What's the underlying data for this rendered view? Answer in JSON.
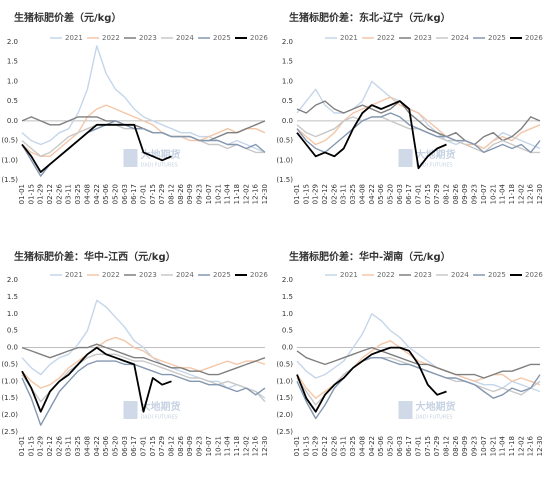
{
  "chart_data": [
    {
      "type": "line",
      "title": "生猪标肥价差（元/kg）",
      "watermark": "大地期货",
      "watermark_sub": "DADI FUTURES",
      "categories": [
        "01-01",
        "01-15",
        "01-29",
        "02-12",
        "02-26",
        "03-11",
        "03-25",
        "04-08",
        "04-22",
        "05-06",
        "05-20",
        "06-03",
        "06-17",
        "07-01",
        "07-15",
        "07-29",
        "08-12",
        "08-26",
        "09-09",
        "09-23",
        "10-07",
        "10-21",
        "11-04",
        "11-18",
        "12-02",
        "12-16",
        "12-30"
      ],
      "ylim": [
        -1.5,
        2
      ],
      "yticks": [
        {
          "value": 2,
          "label": "2.0"
        },
        {
          "value": 1.5,
          "label": "1.5"
        },
        {
          "value": 1,
          "label": "1.0"
        },
        {
          "value": 0.5,
          "label": "0.5"
        },
        {
          "value": 0,
          "label": "0.0"
        },
        {
          "value": -0.5,
          "label": "(0.5)"
        },
        {
          "value": -1,
          "label": "(1.0)"
        },
        {
          "value": -1.5,
          "label": "(1.5)"
        }
      ],
      "zero_line": true,
      "legend": "top",
      "series": [
        {
          "name": "2021",
          "color": "#c5d6ea",
          "values": [
            -0.3,
            -0.5,
            -0.6,
            -0.5,
            -0.3,
            -0.2,
            0.2,
            0.8,
            1.9,
            1.2,
            0.8,
            0.6,
            0.3,
            0.1,
            0,
            -0.1,
            -0.2,
            -0.3,
            -0.3,
            -0.4,
            -0.4,
            -0.5,
            -0.6,
            -0.5,
            -0.6,
            -0.7,
            -0.8
          ]
        },
        {
          "name": "2022",
          "color": "#f4c6a8",
          "values": [
            -0.6,
            -0.8,
            -0.9,
            -0.9,
            -0.7,
            -0.5,
            -0.3,
            0.1,
            0.3,
            0.4,
            0.3,
            0.2,
            0.1,
            0,
            -0.1,
            -0.3,
            -0.4,
            -0.4,
            -0.5,
            -0.5,
            -0.4,
            -0.3,
            -0.2,
            -0.3,
            -0.2,
            -0.2,
            -0.3
          ]
        },
        {
          "name": "2023",
          "color": "#7f7f7f",
          "values": [
            0,
            0.1,
            0,
            -0.1,
            -0.1,
            0,
            0.1,
            0.1,
            0.1,
            0,
            0,
            -0.1,
            -0.1,
            -0.2,
            -0.3,
            -0.3,
            -0.4,
            -0.4,
            -0.4,
            -0.5,
            -0.5,
            -0.4,
            -0.3,
            -0.3,
            -0.2,
            -0.1,
            0
          ]
        },
        {
          "name": "2024",
          "color": "#c8c8c8",
          "values": [
            -0.5,
            -0.7,
            -0.9,
            -0.8,
            -0.6,
            -0.4,
            -0.3,
            -0.2,
            -0.1,
            -0.1,
            -0.1,
            -0.2,
            -0.2,
            -0.2,
            -0.3,
            -0.3,
            -0.4,
            -0.4,
            -0.4,
            -0.5,
            -0.6,
            -0.6,
            -0.7,
            -0.6,
            -0.7,
            -0.8,
            -0.8
          ]
        },
        {
          "name": "2025",
          "color": "#8497b0",
          "values": [
            -0.6,
            -1,
            -1.4,
            -1.1,
            -0.9,
            -0.7,
            -0.5,
            -0.3,
            -0.2,
            -0.1,
            0,
            -0.1,
            -0.2,
            -0.2,
            -0.3,
            -0.3,
            -0.4,
            -0.4,
            -0.4,
            -0.5,
            -0.5,
            -0.5,
            -0.6,
            -0.6,
            -0.7,
            -0.6,
            -0.8
          ]
        },
        {
          "name": "2026",
          "color": "#000000",
          "values": [
            -0.6,
            -0.9,
            -1.3,
            -1.1,
            -0.9,
            -0.7,
            -0.5,
            -0.3,
            -0.1,
            -0.1,
            -0.1,
            -0.1,
            -0.1,
            -0.8,
            -0.9,
            -1,
            -0.9,
            null,
            null,
            null,
            null,
            null,
            null,
            null,
            null,
            null,
            null
          ]
        }
      ]
    },
    {
      "type": "line",
      "title": "生猪标肥价差：东北-辽宁（元/kg）",
      "watermark": "大地期货",
      "watermark_sub": "DADI FUTURES",
      "categories": [
        "01-01",
        "01-15",
        "01-29",
        "02-12",
        "02-26",
        "03-11",
        "03-25",
        "04-08",
        "04-22",
        "05-06",
        "05-20",
        "06-03",
        "06-17",
        "07-01",
        "07-15",
        "07-29",
        "08-12",
        "08-26",
        "09-09",
        "09-23",
        "10-07",
        "10-21",
        "11-04",
        "11-18",
        "12-02",
        "12-16",
        "12-30"
      ],
      "ylim": [
        -1.5,
        2
      ],
      "yticks": [
        {
          "value": 2,
          "label": "2.0"
        },
        {
          "value": 1.5,
          "label": "1.5"
        },
        {
          "value": 1,
          "label": "1.0"
        },
        {
          "value": 0.5,
          "label": "0.5"
        },
        {
          "value": 0,
          "label": "0.0"
        },
        {
          "value": -0.5,
          "label": "(0.5)"
        },
        {
          "value": -1,
          "label": "(1.0)"
        },
        {
          "value": -1.5,
          "label": "(1.5)"
        }
      ],
      "zero_line": true,
      "legend": "top",
      "series": [
        {
          "name": "2021",
          "color": "#c5d6ea",
          "values": [
            0.2,
            0.5,
            0.8,
            0.4,
            0.2,
            0.2,
            0.3,
            0.5,
            1,
            0.8,
            0.6,
            0.5,
            0.3,
            0.2,
            -0.1,
            -0.3,
            -0.5,
            -0.6,
            -0.5,
            -0.6,
            -0.7,
            -0.5,
            -0.3,
            -0.4,
            -0.5,
            -0.6,
            -0.7
          ]
        },
        {
          "name": "2022",
          "color": "#f4c6a8",
          "values": [
            -0.2,
            -0.4,
            -0.6,
            -0.5,
            -0.3,
            0,
            0.2,
            0.3,
            0.4,
            0.5,
            0.6,
            0.4,
            0.3,
            0.2,
            0,
            -0.2,
            -0.4,
            -0.5,
            -0.6,
            -0.6,
            -0.7,
            -0.5,
            -0.4,
            -0.5,
            -0.3,
            -0.2,
            -0.1
          ]
        },
        {
          "name": "2023",
          "color": "#7f7f7f",
          "values": [
            0.3,
            0.2,
            0.4,
            0.5,
            0.3,
            0.2,
            0.3,
            0.4,
            0.3,
            0.2,
            0.3,
            0.5,
            0.2,
            0,
            -0.2,
            -0.3,
            -0.4,
            -0.3,
            -0.5,
            -0.6,
            -0.4,
            -0.3,
            -0.5,
            -0.4,
            -0.2,
            0.1,
            0
          ]
        },
        {
          "name": "2024",
          "color": "#c8c8c8",
          "values": [
            -0.1,
            -0.3,
            -0.4,
            -0.3,
            -0.2,
            0,
            0.1,
            0,
            0.1,
            0.1,
            0,
            -0.1,
            -0.2,
            -0.2,
            -0.3,
            -0.4,
            -0.5,
            -0.5,
            -0.6,
            -0.7,
            -0.8,
            -0.6,
            -0.5,
            -0.6,
            -0.7,
            -0.8,
            -0.8
          ]
        },
        {
          "name": "2025",
          "color": "#8497b0",
          "values": [
            -0.2,
            -0.5,
            -0.7,
            -0.8,
            -0.6,
            -0.4,
            -0.2,
            0,
            0.1,
            0.1,
            0.2,
            0.1,
            -0.1,
            -0.2,
            -0.3,
            -0.4,
            -0.4,
            -0.5,
            -0.5,
            -0.6,
            -0.8,
            -0.7,
            -0.6,
            -0.7,
            -0.6,
            -0.8,
            -0.5
          ]
        },
        {
          "name": "2026",
          "color": "#000000",
          "values": [
            -0.3,
            -0.6,
            -0.9,
            -0.8,
            -0.9,
            -0.7,
            -0.2,
            0.2,
            0.4,
            0.3,
            0.4,
            0.5,
            0.3,
            -1.2,
            -0.9,
            -0.7,
            -0.6,
            null,
            null,
            null,
            null,
            null,
            null,
            null,
            null,
            null,
            null
          ]
        }
      ]
    },
    {
      "type": "line",
      "title": "生猪标肥价差：华中-江西（元/kg）",
      "watermark": "大地期货",
      "watermark_sub": "DADI FUTURES",
      "categories": [
        "01-01",
        "01-15",
        "01-29",
        "02-12",
        "02-26",
        "03-11",
        "03-25",
        "04-08",
        "04-22",
        "05-06",
        "05-20",
        "06-03",
        "06-17",
        "07-01",
        "07-15",
        "07-29",
        "08-12",
        "08-26",
        "09-09",
        "09-23",
        "10-07",
        "10-21",
        "11-04",
        "11-18",
        "12-02",
        "12-16",
        "12-30"
      ],
      "ylim": [
        -2.5,
        2
      ],
      "yticks": [
        {
          "value": 2,
          "label": "2.0"
        },
        {
          "value": 1.5,
          "label": "1.5"
        },
        {
          "value": 1,
          "label": "1.0"
        },
        {
          "value": 0.5,
          "label": "0.5"
        },
        {
          "value": 0,
          "label": "0.0"
        },
        {
          "value": -0.5,
          "label": "(0.5)"
        },
        {
          "value": -1,
          "label": "(1.0)"
        },
        {
          "value": -1.5,
          "label": "(1.5)"
        },
        {
          "value": -2,
          "label": "(2.0)"
        },
        {
          "value": -2.5,
          "label": "(2.5)"
        }
      ],
      "zero_line": true,
      "legend": "top",
      "series": [
        {
          "name": "2021",
          "color": "#c5d6ea",
          "values": [
            -0.3,
            -0.6,
            -0.8,
            -0.5,
            -0.3,
            -0.2,
            0.1,
            0.5,
            1.4,
            1.2,
            0.9,
            0.6,
            0.2,
            0,
            -0.3,
            -0.5,
            -0.6,
            -0.7,
            -0.8,
            -0.9,
            -1,
            -1,
            -1.2,
            -1.1,
            -1.2,
            -1.3,
            -1.5
          ]
        },
        {
          "name": "2022",
          "color": "#f4c6a8",
          "values": [
            -0.7,
            -1,
            -1.2,
            -1.1,
            -0.9,
            -0.6,
            -0.4,
            -0.2,
            0,
            0.2,
            0.3,
            0.2,
            0,
            -0.1,
            -0.3,
            -0.4,
            -0.5,
            -0.6,
            -0.6,
            -0.7,
            -0.6,
            -0.5,
            -0.4,
            -0.5,
            -0.4,
            -0.4,
            -0.5
          ]
        },
        {
          "name": "2023",
          "color": "#7f7f7f",
          "values": [
            0,
            -0.1,
            -0.2,
            -0.3,
            -0.2,
            -0.1,
            0,
            0,
            0.1,
            0,
            -0.1,
            -0.2,
            -0.3,
            -0.3,
            -0.4,
            -0.5,
            -0.6,
            -0.6,
            -0.7,
            -0.7,
            -0.8,
            -0.8,
            -0.7,
            -0.6,
            -0.5,
            -0.4,
            -0.3
          ]
        },
        {
          "name": "2024",
          "color": "#c8c8c8",
          "values": [
            -0.8,
            -1.2,
            -1.6,
            -1.3,
            -1,
            -0.7,
            -0.5,
            -0.3,
            -0.2,
            -0.2,
            -0.2,
            -0.3,
            -0.4,
            -0.4,
            -0.5,
            -0.6,
            -0.7,
            -0.8,
            -0.9,
            -0.9,
            -1,
            -1.1,
            -1,
            -1.1,
            -1.2,
            -1.3,
            -1.6
          ]
        },
        {
          "name": "2025",
          "color": "#8497b0",
          "values": [
            -0.9,
            -1.5,
            -2.3,
            -1.8,
            -1.3,
            -1,
            -0.7,
            -0.5,
            -0.4,
            -0.4,
            -0.4,
            -0.5,
            -0.5,
            -0.6,
            -0.7,
            -0.8,
            -0.8,
            -0.9,
            -1,
            -1,
            -1.1,
            -1.1,
            -1.2,
            -1.3,
            -1.2,
            -1.4,
            -1.2
          ]
        },
        {
          "name": "2026",
          "color": "#000000",
          "values": [
            -0.7,
            -1.2,
            -1.9,
            -1.3,
            -1,
            -0.8,
            -0.5,
            -0.2,
            0,
            -0.2,
            -0.3,
            -0.4,
            -0.5,
            -1.9,
            -0.9,
            -1.1,
            -1,
            null,
            null,
            null,
            null,
            null,
            null,
            null,
            null,
            null,
            null
          ]
        }
      ]
    },
    {
      "type": "line",
      "title": "生猪标肥价差：华中-湖南（元/kg）",
      "watermark": "大地期货",
      "watermark_sub": "DADI FUTURES",
      "categories": [
        "01-01",
        "01-15",
        "01-29",
        "02-12",
        "02-26",
        "03-11",
        "03-25",
        "04-08",
        "04-22",
        "05-06",
        "05-20",
        "06-03",
        "06-17",
        "07-01",
        "07-15",
        "07-29",
        "08-12",
        "08-26",
        "09-09",
        "09-23",
        "10-07",
        "10-21",
        "11-04",
        "11-18",
        "12-02",
        "12-16",
        "12-30"
      ],
      "ylim": [
        -2.5,
        2
      ],
      "yticks": [
        {
          "value": 2,
          "label": "2.0"
        },
        {
          "value": 1.5,
          "label": "1.5"
        },
        {
          "value": 1,
          "label": "1.0"
        },
        {
          "value": 0.5,
          "label": "0.5"
        },
        {
          "value": 0,
          "label": "0.0"
        },
        {
          "value": -0.5,
          "label": "(0.5)"
        },
        {
          "value": -1,
          "label": "(1.0)"
        },
        {
          "value": -1.5,
          "label": "(1.5)"
        },
        {
          "value": -2,
          "label": "(2.0)"
        },
        {
          "value": -2.5,
          "label": "(2.5)"
        }
      ],
      "zero_line": true,
      "legend": "top",
      "series": [
        {
          "name": "2021",
          "color": "#c5d6ea",
          "values": [
            -0.4,
            -0.7,
            -0.9,
            -0.8,
            -0.6,
            -0.4,
            0,
            0.4,
            1,
            0.8,
            0.5,
            0.3,
            0,
            -0.2,
            -0.4,
            -0.6,
            -0.7,
            -0.8,
            -0.9,
            -1,
            -1.1,
            -1.1,
            -1.2,
            -1,
            -1.1,
            -1.2,
            -1.3
          ]
        },
        {
          "name": "2022",
          "color": "#f4c6a8",
          "values": [
            -0.8,
            -1.2,
            -1.5,
            -1.3,
            -1.1,
            -0.8,
            -0.6,
            -0.3,
            -0.1,
            0.1,
            0.2,
            0,
            -0.2,
            -0.4,
            -0.5,
            -0.6,
            -0.7,
            -0.8,
            -0.9,
            -1,
            -0.9,
            -0.8,
            -0.8,
            -1,
            -0.9,
            -1,
            -1.1
          ]
        },
        {
          "name": "2023",
          "color": "#7f7f7f",
          "values": [
            -0.1,
            -0.3,
            -0.4,
            -0.5,
            -0.4,
            -0.3,
            -0.2,
            -0.1,
            0,
            -0.1,
            -0.2,
            -0.3,
            -0.4,
            -0.5,
            -0.5,
            -0.6,
            -0.7,
            -0.8,
            -0.8,
            -0.8,
            -0.9,
            -0.8,
            -0.7,
            -0.7,
            -0.6,
            -0.5,
            -0.5
          ]
        },
        {
          "name": "2024",
          "color": "#c8c8c8",
          "values": [
            -0.9,
            -1.3,
            -1.7,
            -1.4,
            -1.1,
            -0.8,
            -0.6,
            -0.4,
            -0.3,
            -0.3,
            -0.3,
            -0.4,
            -0.5,
            -0.6,
            -0.7,
            -0.8,
            -0.9,
            -1,
            -1,
            -1.1,
            -1.2,
            -1.3,
            -1.2,
            -1.3,
            -1.4,
            -1.2,
            -1
          ]
        },
        {
          "name": "2025",
          "color": "#8497b0",
          "values": [
            -1,
            -1.6,
            -2.1,
            -1.7,
            -1.2,
            -0.9,
            -0.6,
            -0.4,
            -0.3,
            -0.3,
            -0.4,
            -0.5,
            -0.5,
            -0.6,
            -0.7,
            -0.8,
            -0.9,
            -0.9,
            -1,
            -1.1,
            -1.3,
            -1.5,
            -1.4,
            -1.2,
            -1.3,
            -1.2,
            -0.8
          ]
        },
        {
          "name": "2026",
          "color": "#000000",
          "values": [
            -0.8,
            -1.5,
            -1.9,
            -1.4,
            -1.1,
            -0.9,
            -0.6,
            -0.4,
            -0.2,
            -0.1,
            0,
            0,
            -0.1,
            -0.5,
            -1.1,
            -1.4,
            -1.3,
            null,
            null,
            null,
            null,
            null,
            null,
            null,
            null,
            null,
            null
          ]
        }
      ]
    }
  ]
}
